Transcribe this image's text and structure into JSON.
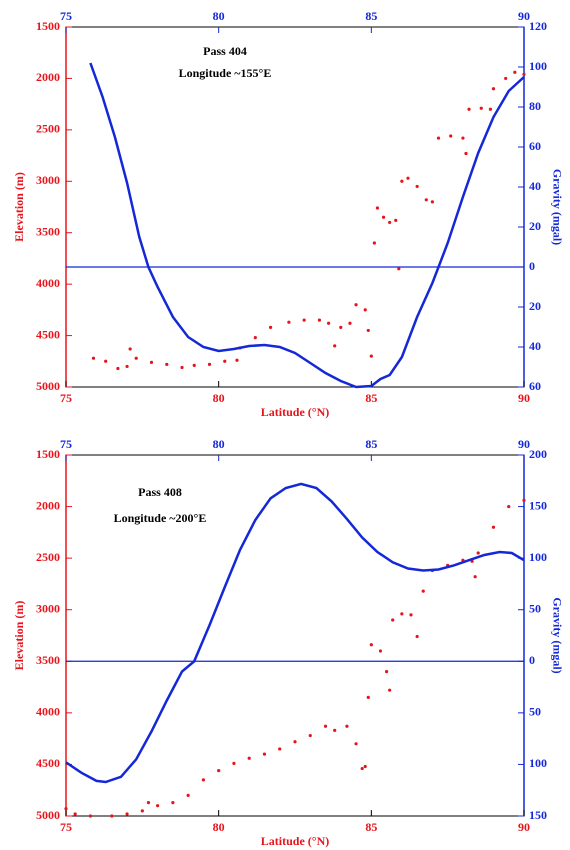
{
  "chart_data": [
    {
      "type": "line",
      "annotations": [
        "Pass 404",
        "Longitude ~155°E"
      ],
      "xlabel": "Latitude (°N)",
      "ylabel": "Elevation (m)",
      "y2label": "Gravity (mgal)",
      "xlim": [
        75,
        90
      ],
      "xticks": [
        75,
        80,
        85,
        90
      ],
      "x2ticks": [
        75,
        80,
        85,
        90
      ],
      "ylim": [
        5000,
        1500
      ],
      "yticks": [
        1500,
        2000,
        2500,
        3000,
        3500,
        4000,
        4500,
        5000
      ],
      "y2lim": [
        -60,
        120
      ],
      "y2ticks": [
        120,
        100,
        80,
        60,
        40,
        20,
        0,
        {
          "value": -20,
          "label": "20"
        },
        {
          "value": -40,
          "label": "40"
        },
        {
          "value": -60,
          "label": "60"
        }
      ],
      "hline": 0,
      "series": [
        {
          "color": "#e8141c",
          "mode": "markers",
          "axis": "y",
          "x": [
            75.9,
            76.3,
            76.7,
            77.0,
            77.1,
            77.3,
            77.8,
            78.3,
            78.8,
            79.2,
            79.7,
            80.2,
            80.6,
            80.7,
            81.2,
            81.7,
            82.3,
            82.8,
            83.3,
            83.6,
            83.8,
            84.0,
            84.3,
            84.5,
            84.8,
            84.9,
            85.0,
            85.1,
            85.2,
            85.4,
            85.6,
            85.8,
            85.9,
            86.0,
            86.2,
            86.5,
            86.8,
            87.0,
            87.2,
            87.6,
            88.0,
            88.1,
            88.2,
            88.6,
            88.9,
            89.0,
            89.4,
            89.7,
            90.0
          ],
          "values": [
            4720,
            4750,
            4820,
            4800,
            4630,
            4720,
            4760,
            4780,
            4810,
            4790,
            4780,
            4750,
            4740,
            4620,
            4520,
            4420,
            4370,
            4350,
            4350,
            4380,
            4600,
            4420,
            4380,
            4200,
            4250,
            4450,
            4700,
            3600,
            3260,
            3350,
            3400,
            3380,
            3850,
            3000,
            2970,
            3050,
            3180,
            3200,
            2580,
            2560,
            2580,
            2730,
            2300,
            2290,
            2300,
            2100,
            2000,
            1940,
            1960
          ]
        },
        {
          "color": "#1428d8",
          "mode": "lines",
          "axis": "y2",
          "x": [
            75.8,
            76.2,
            76.6,
            77.0,
            77.4,
            77.7,
            78.0,
            78.5,
            79.0,
            79.5,
            80.0,
            80.5,
            81.0,
            81.5,
            82.0,
            82.5,
            83.0,
            83.5,
            84.0,
            84.5,
            85.0,
            85.3,
            85.6,
            86.0,
            86.5,
            87.0,
            87.5,
            88.0,
            88.5,
            89.0,
            89.5,
            90.0
          ],
          "values": [
            102,
            85,
            65,
            42,
            15,
            0,
            -10,
            -25,
            -35,
            -40,
            -42,
            -41,
            -39.5,
            -39,
            -40,
            -43,
            -48,
            -53,
            -57,
            -60,
            -59.5,
            -56,
            -54,
            -45,
            -25,
            -8,
            12,
            35,
            57,
            75,
            88,
            95
          ]
        }
      ]
    },
    {
      "type": "line",
      "annotations": [
        "Pass 408",
        "Longitude ~200°E"
      ],
      "xlabel": "Latitude (°N)",
      "ylabel": "Elevation (m)",
      "y2label": "Gravity (mgal)",
      "xlim": [
        75,
        90
      ],
      "xticks": [
        75,
        80,
        85,
        90
      ],
      "x2ticks": [
        75,
        80,
        85,
        90
      ],
      "ylim": [
        5000,
        1500
      ],
      "yticks": [
        1500,
        2000,
        2500,
        3000,
        3500,
        4000,
        4500,
        5000
      ],
      "y2lim": [
        -150,
        200
      ],
      "y2ticks": [
        200,
        150,
        100,
        50,
        0,
        {
          "value": -50,
          "label": "50"
        },
        {
          "value": -100,
          "label": "100"
        },
        {
          "value": -150,
          "label": "150"
        }
      ],
      "hline": 0,
      "series": [
        {
          "color": "#e8141c",
          "mode": "markers",
          "axis": "y",
          "x": [
            75.0,
            75.3,
            75.8,
            76.5,
            77.0,
            77.5,
            77.7,
            78.0,
            78.5,
            79.0,
            79.5,
            80.0,
            80.5,
            81.0,
            81.5,
            82.0,
            82.5,
            83.0,
            83.5,
            83.8,
            84.2,
            84.5,
            84.7,
            84.8,
            84.9,
            85.0,
            85.3,
            85.5,
            85.6,
            85.7,
            86.0,
            86.3,
            86.5,
            86.7,
            87.0,
            87.5,
            88.0,
            88.3,
            88.4,
            88.5,
            89.0,
            89.5,
            90.0
          ],
          "values": [
            4930,
            4980,
            5000,
            5000,
            4980,
            4950,
            4870,
            4900,
            4870,
            4800,
            4650,
            4560,
            4490,
            4440,
            4400,
            4350,
            4280,
            4220,
            4130,
            4170,
            4130,
            4300,
            4540,
            4520,
            3850,
            3340,
            3400,
            3600,
            3780,
            3100,
            3040,
            3050,
            3260,
            2820,
            2620,
            2570,
            2520,
            2530,
            2680,
            2450,
            2200,
            2000,
            1940
          ]
        },
        {
          "color": "#1428d8",
          "mode": "lines",
          "axis": "y2",
          "x": [
            75.0,
            75.5,
            76.0,
            76.3,
            76.8,
            77.3,
            77.8,
            78.3,
            78.8,
            79.2,
            79.7,
            80.2,
            80.7,
            81.2,
            81.7,
            82.2,
            82.7,
            83.2,
            83.7,
            84.2,
            84.7,
            85.2,
            85.7,
            86.2,
            86.7,
            87.2,
            87.7,
            88.2,
            88.7,
            89.2,
            89.6,
            90.0
          ],
          "values": [
            -98,
            -108,
            -116,
            -117,
            -112,
            -95,
            -68,
            -38,
            -10,
            0,
            35,
            72,
            108,
            137,
            158,
            168,
            172,
            168,
            155,
            138,
            120,
            106,
            96,
            90,
            88,
            89,
            93,
            98,
            103,
            106,
            105,
            98
          ]
        }
      ]
    }
  ]
}
